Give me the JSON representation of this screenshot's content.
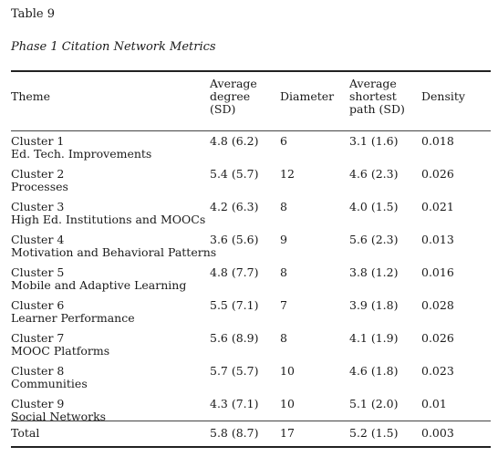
{
  "table_label": "Table 9",
  "table_title": "Phase 1 Citation Network Metrics",
  "headers": {
    "theme": "Theme",
    "avg_degree": [
      "Average",
      "degree",
      "(SD)"
    ],
    "diameter": "Diameter",
    "avg_shortest_path": [
      "Average",
      "shortest",
      "path (SD)"
    ],
    "density": "Density"
  },
  "rows": [
    {
      "cluster": "Cluster 1",
      "name": "Ed. Tech. Improvements",
      "avg_degree": "4.8 (6.2)",
      "diameter": "6",
      "avg_shortest_path": "3.1 (1.6)",
      "density": "0.018"
    },
    {
      "cluster": "Cluster 2",
      "name": "Processes",
      "avg_degree": "5.4 (5.7)",
      "diameter": "12",
      "avg_shortest_path": "4.6 (2.3)",
      "density": "0.026"
    },
    {
      "cluster": "Cluster 3",
      "name": "High Ed. Institutions and MOOCs",
      "avg_degree": "4.2 (6.3)",
      "diameter": "8",
      "avg_shortest_path": "4.0 (1.5)",
      "density": "0.021"
    },
    {
      "cluster": "Cluster 4",
      "name": "Motivation and Behavioral Patterns",
      "avg_degree": "3.6 (5.6)",
      "diameter": "9",
      "avg_shortest_path": "5.6 (2.3)",
      "density": "0.013"
    },
    {
      "cluster": "Cluster 5",
      "name": "Mobile and Adaptive Learning",
      "avg_degree": "4.8 (7.7)",
      "diameter": "8",
      "avg_shortest_path": "3.8 (1.2)",
      "density": "0.016"
    },
    {
      "cluster": "Cluster 6",
      "name": "Learner Performance",
      "avg_degree": "5.5 (7.1)",
      "diameter": "7",
      "avg_shortest_path": "3.9 (1.8)",
      "density": "0.028"
    },
    {
      "cluster": "Cluster 7",
      "name": "MOOC Platforms",
      "avg_degree": "5.6 (8.9)",
      "diameter": "8",
      "avg_shortest_path": "4.1 (1.9)",
      "density": "0.026"
    },
    {
      "cluster": "Cluster 8",
      "name": "Communities",
      "avg_degree": "5.7 (5.7)",
      "diameter": "10",
      "avg_shortest_path": "4.6 (1.8)",
      "density": "0.023"
    },
    {
      "cluster": "Cluster 9",
      "name": "Social Networks",
      "avg_degree": "4.3 (7.1)",
      "diameter": "10",
      "avg_shortest_path": "5.1 (2.0)",
      "density": "0.01"
    }
  ],
  "total": {
    "label": "Total",
    "avg_degree": "5.8 (8.7)",
    "diameter": "17",
    "avg_shortest_path": "5.2 (1.5)",
    "density": "0.003"
  }
}
